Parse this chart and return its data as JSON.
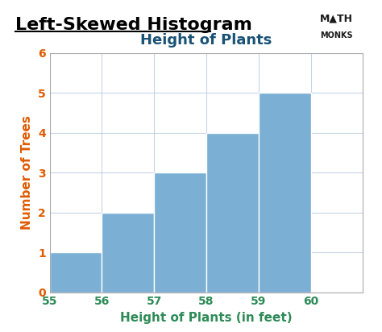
{
  "title": "Left-Skewed Histogram",
  "chart_title": "Height of Plants",
  "xlabel": "Height of Plants (in feet)",
  "ylabel": "Number of Trees",
  "bar_left_edges": [
    55,
    56,
    57,
    58,
    59
  ],
  "bar_heights": [
    1,
    2,
    3,
    4,
    5
  ],
  "bar_width": 1,
  "bar_color": "#7bafd4",
  "bar_edgecolor": "#ffffff",
  "xlim": [
    55,
    61
  ],
  "ylim": [
    0,
    6
  ],
  "xticks": [
    55,
    56,
    57,
    58,
    59,
    60
  ],
  "yticks": [
    0,
    1,
    2,
    3,
    4,
    5,
    6
  ],
  "xtick_color": "#2e8b57",
  "ytick_color": "#e05a00",
  "xlabel_color": "#2e8b57",
  "ylabel_color": "#e05a00",
  "chart_title_color": "#1a5276",
  "main_title_color": "#000000",
  "main_title_fontsize": 16,
  "chart_title_fontsize": 13,
  "axis_label_fontsize": 11,
  "tick_fontsize": 10,
  "background_color": "#ffffff",
  "plot_background_color": "#ffffff",
  "grid_color": "#b0c4de",
  "grid_alpha": 0.7
}
